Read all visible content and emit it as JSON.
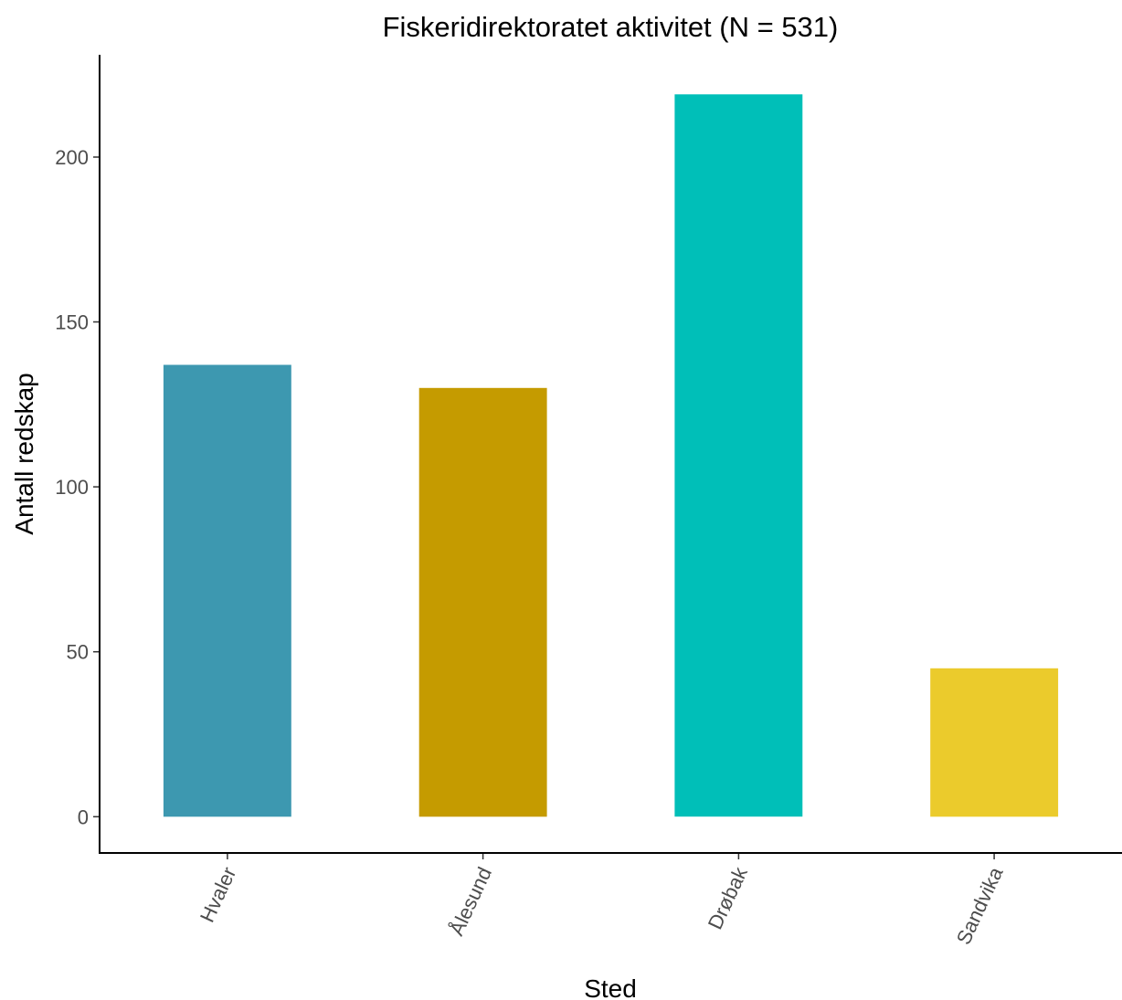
{
  "chart_data": {
    "type": "bar",
    "title": "Fiskeridirektoratet aktivitet (N = 531)",
    "xlabel": "Sted",
    "ylabel": "Antall redskap",
    "categories": [
      "Hvaler",
      "Ålesund",
      "Drøbak",
      "Sandvika"
    ],
    "values": [
      137,
      130,
      219,
      45
    ],
    "colors": [
      "#3d98b0",
      "#c59b00",
      "#00bfb8",
      "#ebcb2c"
    ],
    "yticks": [
      "0",
      "50",
      "100",
      "150",
      "200"
    ],
    "ylim": [
      -11,
      231
    ],
    "grid": false,
    "legend": "none"
  }
}
